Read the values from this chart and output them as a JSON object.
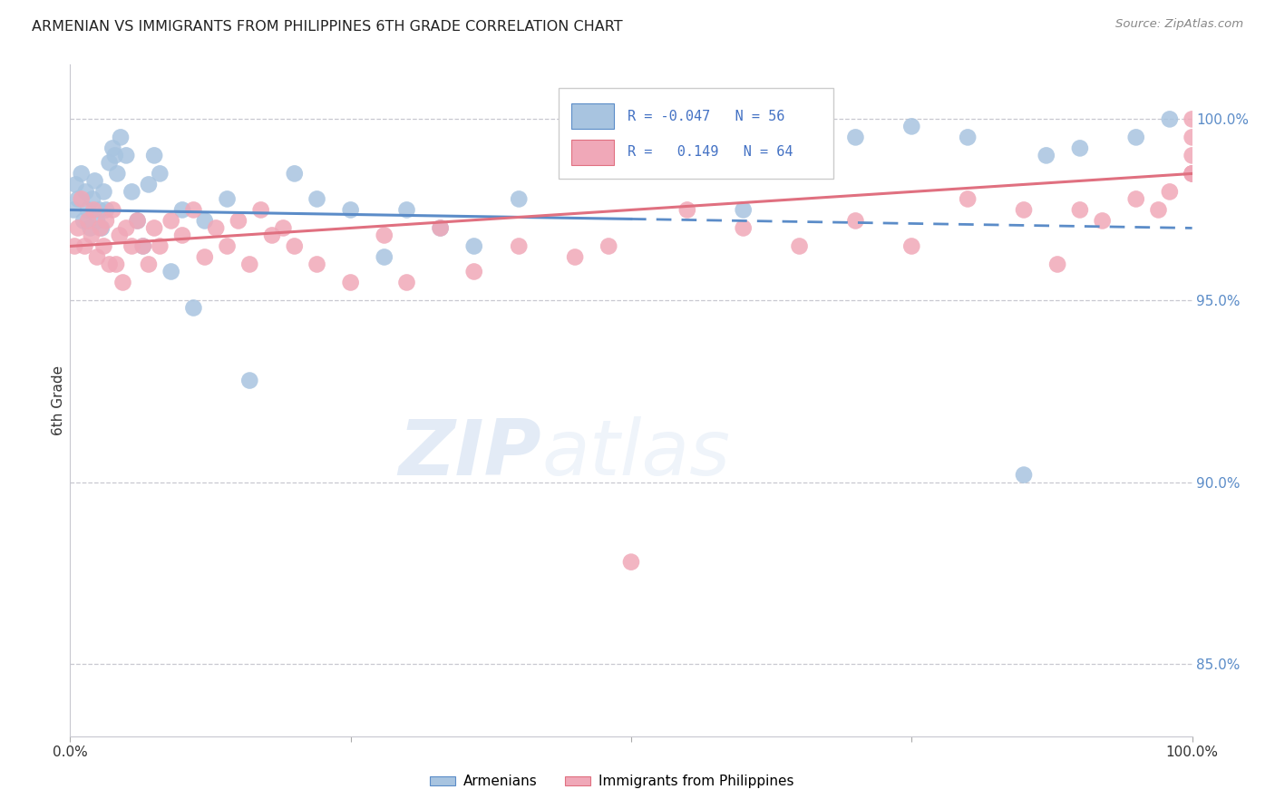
{
  "title": "ARMENIAN VS IMMIGRANTS FROM PHILIPPINES 6TH GRADE CORRELATION CHART",
  "source": "Source: ZipAtlas.com",
  "ylabel": "6th Grade",
  "right_ytick_labels": [
    "100.0%",
    "95.0%",
    "90.0%",
    "85.0%"
  ],
  "right_ytick_vals": [
    100.0,
    95.0,
    90.0,
    85.0
  ],
  "legend_label1": "Armenians",
  "legend_label2": "Immigrants from Philippines",
  "color_blue": "#a8c4e0",
  "color_pink": "#f0a8b8",
  "color_blue_line": "#5b8cc8",
  "color_pink_line": "#e07080",
  "watermark_zip": "ZIP",
  "watermark_atlas": "atlas",
  "ylim_min": 83.0,
  "ylim_max": 101.5,
  "xlim_min": 0.0,
  "xlim_max": 100.0,
  "blue_trend_start_y": 97.5,
  "blue_trend_end_y": 97.0,
  "pink_trend_start_y": 96.5,
  "pink_trend_end_y": 98.5,
  "blue_x": [
    0.3,
    0.5,
    0.7,
    1.0,
    1.2,
    1.4,
    1.6,
    1.8,
    2.0,
    2.2,
    2.4,
    2.6,
    2.8,
    3.0,
    3.2,
    3.5,
    3.8,
    4.0,
    4.2,
    4.5,
    5.0,
    5.5,
    6.0,
    6.5,
    7.0,
    7.5,
    8.0,
    9.0,
    10.0,
    11.0,
    12.0,
    14.0,
    16.0,
    20.0,
    22.0,
    25.0,
    28.0,
    30.0,
    33.0,
    36.0,
    40.0,
    45.0,
    47.0,
    50.0,
    55.0,
    60.0,
    62.0,
    65.0,
    70.0,
    75.0,
    80.0,
    85.0,
    87.0,
    90.0,
    95.0,
    98.0
  ],
  "blue_y": [
    97.5,
    98.2,
    97.8,
    98.5,
    97.2,
    98.0,
    97.5,
    97.0,
    97.8,
    98.3,
    97.2,
    97.5,
    97.0,
    98.0,
    97.5,
    98.8,
    99.2,
    99.0,
    98.5,
    99.5,
    99.0,
    98.0,
    97.2,
    96.5,
    98.2,
    99.0,
    98.5,
    95.8,
    97.5,
    94.8,
    97.2,
    97.8,
    92.8,
    98.5,
    97.8,
    97.5,
    96.2,
    97.5,
    97.0,
    96.5,
    97.8,
    99.0,
    99.5,
    99.2,
    99.5,
    97.5,
    99.5,
    99.8,
    99.5,
    99.8,
    99.5,
    90.2,
    99.0,
    99.2,
    99.5,
    100.0
  ],
  "pink_x": [
    0.4,
    0.7,
    1.0,
    1.3,
    1.6,
    1.9,
    2.1,
    2.4,
    2.7,
    3.0,
    3.2,
    3.5,
    3.8,
    4.1,
    4.4,
    4.7,
    5.0,
    5.5,
    6.0,
    6.5,
    7.0,
    7.5,
    8.0,
    9.0,
    10.0,
    11.0,
    12.0,
    13.0,
    14.0,
    15.0,
    16.0,
    17.0,
    18.0,
    19.0,
    20.0,
    22.0,
    25.0,
    28.0,
    30.0,
    33.0,
    36.0,
    40.0,
    45.0,
    48.0,
    50.0,
    55.0,
    60.0,
    65.0,
    70.0,
    75.0,
    80.0,
    85.0,
    88.0,
    90.0,
    92.0,
    95.0,
    97.0,
    98.0,
    100.0,
    100.0,
    100.0,
    100.0,
    100.0,
    100.0
  ],
  "pink_y": [
    96.5,
    97.0,
    97.8,
    96.5,
    97.2,
    96.8,
    97.5,
    96.2,
    97.0,
    96.5,
    97.2,
    96.0,
    97.5,
    96.0,
    96.8,
    95.5,
    97.0,
    96.5,
    97.2,
    96.5,
    96.0,
    97.0,
    96.5,
    97.2,
    96.8,
    97.5,
    96.2,
    97.0,
    96.5,
    97.2,
    96.0,
    97.5,
    96.8,
    97.0,
    96.5,
    96.0,
    95.5,
    96.8,
    95.5,
    97.0,
    95.8,
    96.5,
    96.2,
    96.5,
    87.8,
    97.5,
    97.0,
    96.5,
    97.2,
    96.5,
    97.8,
    97.5,
    96.0,
    97.5,
    97.2,
    97.8,
    97.5,
    98.0,
    98.5,
    98.5,
    98.5,
    99.0,
    99.5,
    100.0
  ]
}
